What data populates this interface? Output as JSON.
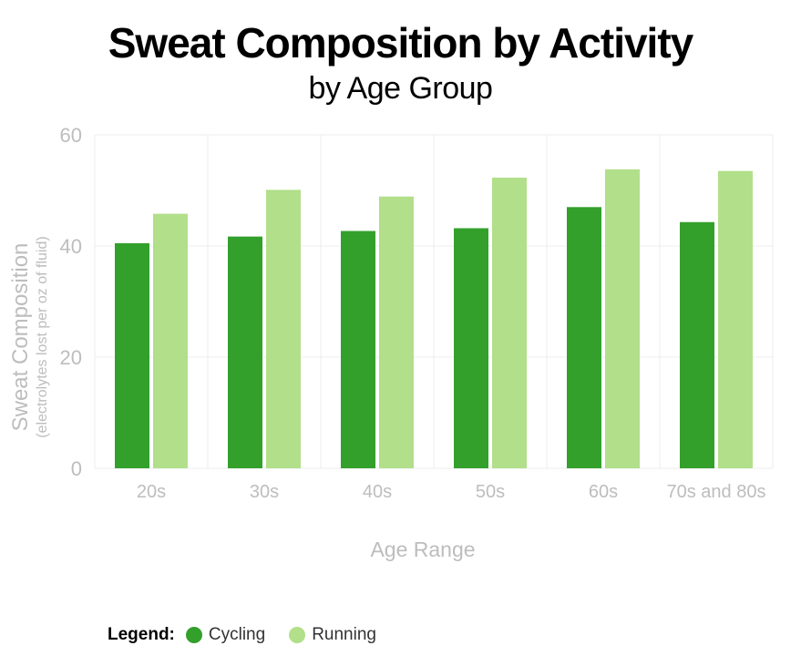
{
  "chart_data": {
    "type": "bar",
    "title": "Sweat Composition by Activity",
    "subtitle": "by Age Group",
    "xlabel": "Age Range",
    "ylabel": "Sweat Composition",
    "ylabel_sub": "(electrolytes lost per oz of fluid)",
    "categories": [
      "20s",
      "30s",
      "40s",
      "50s",
      "60s",
      "70s and 80s"
    ],
    "series": [
      {
        "name": "Cycling",
        "color": "#33a02c",
        "values": [
          40.5,
          41.7,
          42.7,
          43.2,
          47.0,
          44.3
        ]
      },
      {
        "name": "Running",
        "color": "#b2df8a",
        "values": [
          45.8,
          50.1,
          48.9,
          52.3,
          53.8,
          53.5
        ]
      }
    ],
    "ylim": [
      0,
      60
    ],
    "yticks": [
      0,
      20,
      40,
      60
    ],
    "grid": true,
    "legend_title": "Legend:",
    "legend_position": "bottom-left"
  }
}
